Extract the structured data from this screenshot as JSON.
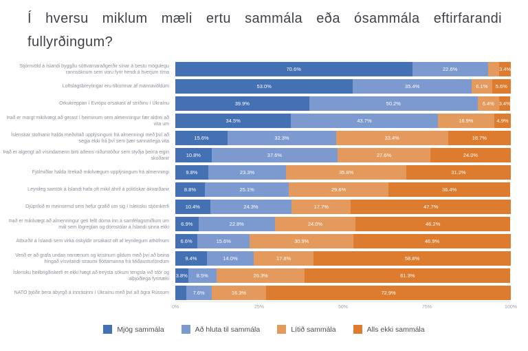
{
  "title": {
    "full": "Í hversu miklum mæli ertu sammála eða ósammála eftirfarandi fullyrðingum?",
    "lines": [
      "Í hversu miklum mæli ertu sammála eða ósammála eftirfarandi",
      "fullyrðingum?"
    ]
  },
  "colors": {
    "background": "#ffffff",
    "title_text": "#3e4248",
    "category_text": "#8a8f99",
    "value_text": "#ffffff",
    "axis_text": "#9aa0a6",
    "very_agree": "#4470b4",
    "partly_agree": "#7c9ad0",
    "little_agree": "#e49a5c",
    "not_at_all_agree": "#dd7b2e"
  },
  "chart_data": {
    "type": "bar",
    "orientation": "horizontal",
    "stacked": true,
    "title": "Í hversu miklum mæli ertu sammála eða ósammála eftirfarandi fullyrðingum?",
    "xlim": [
      0,
      100
    ],
    "x_ticks": [
      "0%",
      "25%",
      "50%",
      "75%",
      "100%"
    ],
    "legend_position": "bottom",
    "categories": [
      "Stjórnvöld á Íslandi byggðu sóttvarnaraðgerðir sínar á bestu mögulegu rannsóknum sem voru fyrir hendi á hverjum tíma",
      "Loftslagsbreytingar eru tilkomnar af mannavöldum",
      "Orkukreppan í Evrópu orsakast af stríðinu í Úkraínu",
      "Það er margt mikilvægt að gerast í heiminum sem almenningur fær aldrei að vita um",
      "Íslenskar stofnanir halda meðvitað upplýsingum frá almenningi með því að segja ekki frá því sem þær sannarlega vita",
      "Það er algengt að vísindamenn birti aðeins niðurstöður sem styðja þeirra eigin skoðanir",
      "Fjölmiðlar halda ítrekað mikilvægum upplýsingum frá almenningi",
      "Leynileg samtök á Íslandi hafa oft mikil áhrif á pólitískar ákvarðanir",
      "Djúpríkið er meinsemd sem hefur grafið um sig í íslensku stjórnkerfi",
      "Það er mikilvægt að almenningur geti fellt dóma inn á samfélagsmiðlum um mál sem lögreglan og dómstólar á Íslandi sinna ekki",
      "Atburðir á Íslandi sem virka óskyldir orsakast oft af leynilegum athöfnum",
      "Verið er að grafa undan norrænum og kristnum gildum með því að beina hingað vísvitandi straumi flóttamanna frá Miðausturlöndum",
      "Íslensku heilbrigðiskerfi er ekki hægt að treysta sökum tengsla við stór og alþjóðlega fyrirtæki",
      "NATO þjóðir bera ábyrgð á innrásinni í Úkraínu með því að ögra Rússum"
    ],
    "series": [
      {
        "name": "Mjög sammála",
        "color": "#4470b4",
        "values": [
          70.6,
          53.0,
          39.9,
          34.5,
          15.6,
          10.8,
          9.8,
          8.8,
          10.4,
          6.9,
          6.6,
          9.4,
          3.8,
          3.2
        ],
        "labels": [
          "70.6%",
          "53.0%",
          "39.9%",
          "34.5%",
          "15.6%",
          "10.8%",
          "9.8%",
          "8.8%",
          "10.4%",
          "6.9%",
          "6.6%",
          "9.4%",
          "3.8%",
          ""
        ]
      },
      {
        "name": "Að hluta til sammála",
        "color": "#7c9ad0",
        "values": [
          22.6,
          35.4,
          50.2,
          43.7,
          32.3,
          37.6,
          23.3,
          25.1,
          24.3,
          22.8,
          15.6,
          14.0,
          8.5,
          7.6
        ],
        "labels": [
          "22.6%",
          "35.4%",
          "50.2%",
          "43.7%",
          "32.3%",
          "37.6%",
          "23.3%",
          "25.1%",
          "24.3%",
          "22.8%",
          "15.6%",
          "14.0%",
          "8.5%",
          "7.6%"
        ]
      },
      {
        "name": "Lítið sammála",
        "color": "#e49a5c",
        "values": [
          3.4,
          6.1,
          6.4,
          16.9,
          33.4,
          27.6,
          35.8,
          29.6,
          17.7,
          24.0,
          30.9,
          17.8,
          26.3,
          16.3
        ],
        "labels": [
          "",
          "6.1%",
          "6.4%",
          "16.9%",
          "33.4%",
          "27.6%",
          "35.8%",
          "29.6%",
          "17.7%",
          "24.0%",
          "30.9%",
          "17.8%",
          "26.3%",
          "16.3%"
        ]
      },
      {
        "name": "Alls ekki sammála",
        "color": "#dd7b2e",
        "values": [
          3.4,
          5.6,
          3.4,
          4.9,
          18.7,
          24.0,
          31.2,
          36.4,
          47.7,
          46.2,
          46.9,
          58.8,
          61.3,
          72.9
        ],
        "labels": [
          "3.4%",
          "5.6%",
          "3.4%",
          "4.9%",
          "18.7%",
          "24.0%",
          "31.2%",
          "36.4%",
          "47.7%",
          "46.2%",
          "46.9%",
          "58.8%",
          "61.3%",
          "72.9%"
        ]
      }
    ]
  }
}
